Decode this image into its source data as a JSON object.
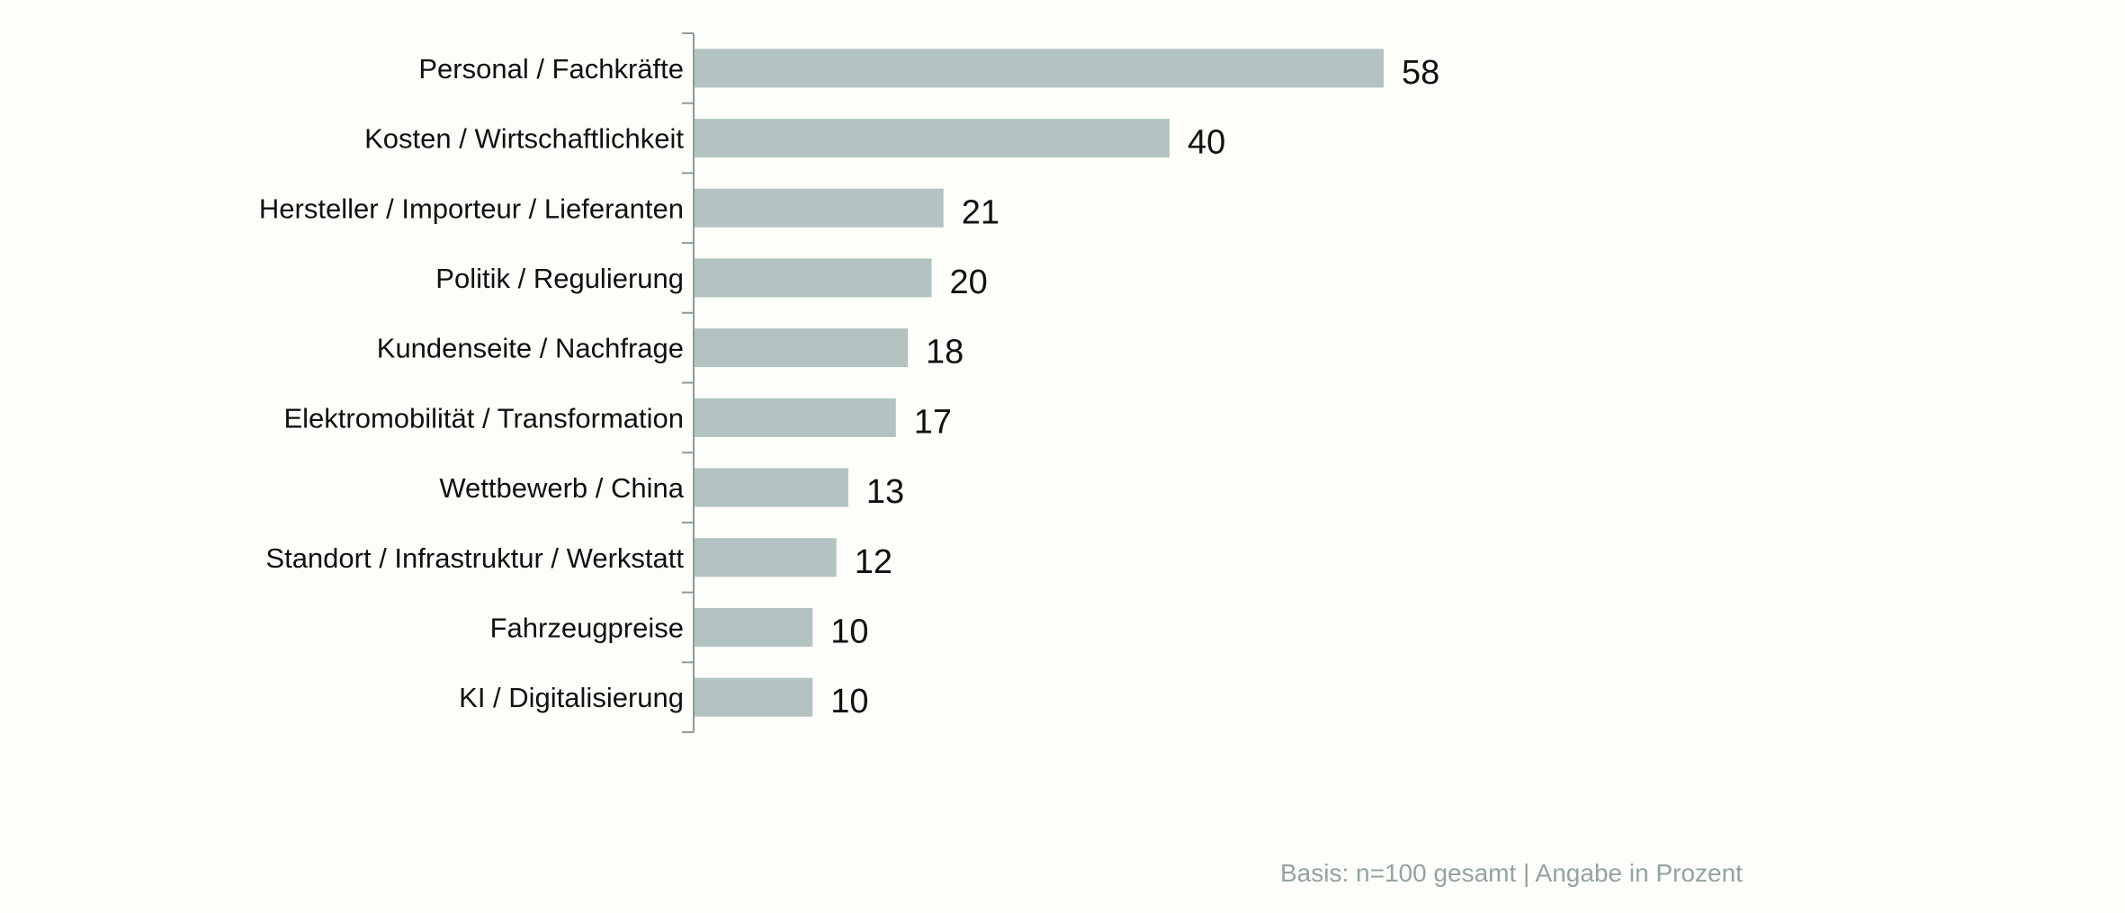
{
  "chart_data": {
    "type": "bar",
    "orientation": "horizontal",
    "categories": [
      "Personal / Fachkräfte",
      "Kosten / Wirtschaftlichkeit",
      "Hersteller / Importeur / Lieferanten",
      "Politik / Regulierung",
      "Kundenseite / Nachfrage",
      "Elektromobilität / Transformation",
      "Wettbewerb / China",
      "Standort / Infrastruktur / Werkstatt",
      "Fahrzeugpreise",
      "KI / Digitalisierung"
    ],
    "values": [
      58,
      40,
      21,
      20,
      18,
      17,
      13,
      12,
      10,
      10
    ],
    "value_labels": [
      "58",
      "40",
      "21",
      "20",
      "18",
      "17",
      "13",
      "12",
      "10",
      "10"
    ],
    "xlim": [
      0,
      100
    ],
    "grid": false,
    "bar_color": "#b2c3c2",
    "axis_color": "#8c9c9c",
    "note": "Basis: n=100 gesamt | Angabe in Prozent"
  }
}
